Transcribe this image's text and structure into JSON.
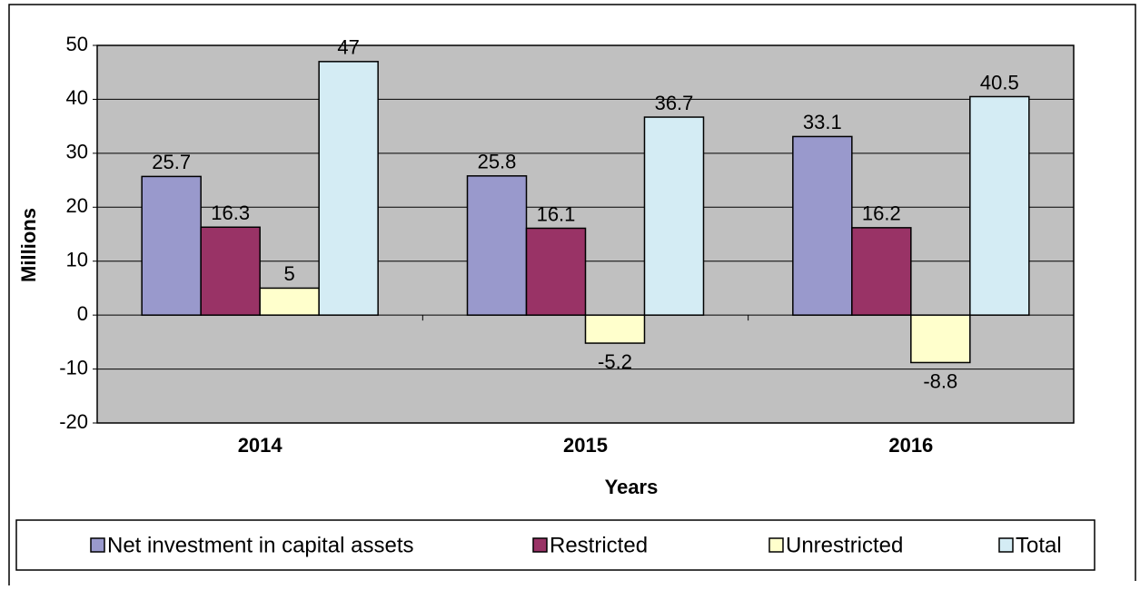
{
  "chart_data": {
    "type": "bar",
    "categories": [
      "2014",
      "2015",
      "2016"
    ],
    "series": [
      {
        "name": "Net investment in capital assets",
        "color": "#9999cc",
        "values": [
          25.7,
          25.8,
          33.1
        ]
      },
      {
        "name": "Restricted",
        "color": "#993366",
        "values": [
          16.3,
          16.1,
          16.2
        ]
      },
      {
        "name": "Unrestricted",
        "color": "#ffffcc",
        "values": [
          5,
          -5.2,
          -8.8
        ]
      },
      {
        "name": "Total",
        "color": "#d4ecf4",
        "values": [
          47,
          36.7,
          40.5
        ]
      }
    ],
    "x_label": "Years",
    "y_label": "Millions",
    "ylim": [
      -20,
      50
    ],
    "yticks": [
      -20,
      -10,
      0,
      10,
      20,
      30,
      40,
      50
    ],
    "grid": true,
    "legend": "bottom",
    "plot_background": "#c0c0c0"
  }
}
